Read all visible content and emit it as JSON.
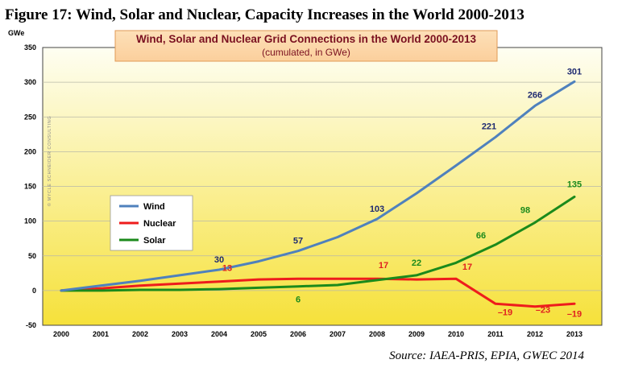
{
  "figure_heading": "Figure 17: Wind, Solar and Nuclear, Capacity Increases in the World 2000-2013",
  "source_note": "Source: IAEA-PRIS, EPIA, GWEC 2014",
  "colors": {
    "wind": "#4f81bd",
    "nuclear": "#ee1c1c",
    "solar": "#1b8a1b",
    "wind_label": "#1f2a70",
    "nuclear_label": "#e02020",
    "solar_label": "#1b8a1b",
    "title_box_fill": "#fbcf9c",
    "title_box_text": "#7a1020",
    "bg_top": "#fefef2",
    "bg_bottom": "#f6e13a"
  },
  "chart_data": {
    "type": "line",
    "title": "Wind, Solar and Nuclear Grid Connections in the World 2000-2013",
    "subtitle": "(cumulated, in GWe)",
    "ylabel": "GWe",
    "xlabel": "",
    "watermark": "© MYCLE SCHNEIDER CONSULTING",
    "ylim": [
      -50,
      350
    ],
    "yticks": [
      -50,
      0,
      50,
      100,
      150,
      200,
      250,
      300,
      350
    ],
    "categories": [
      "2000",
      "2001",
      "2002",
      "2003",
      "2004",
      "2005",
      "2006",
      "2007",
      "2008",
      "2009",
      "2010",
      "2011",
      "2012",
      "2013"
    ],
    "grid": true,
    "legend_position": "left",
    "series": [
      {
        "key": "wind",
        "name": "Wind",
        "values": [
          0,
          7,
          14,
          22,
          30,
          42,
          57,
          77,
          103,
          140,
          180,
          221,
          266,
          301
        ],
        "labels": [
          {
            "index": 4,
            "text": "30"
          },
          {
            "index": 6,
            "text": "57"
          },
          {
            "index": 8,
            "text": "103"
          },
          {
            "index": 11,
            "text": "221"
          },
          {
            "index": 12,
            "text": "266"
          },
          {
            "index": 13,
            "text": "301"
          }
        ]
      },
      {
        "key": "nuclear",
        "name": "Nuclear",
        "values": [
          0,
          3,
          7,
          10,
          13,
          16,
          17,
          17,
          17,
          16,
          17,
          -19,
          -23,
          -19
        ],
        "labels": [
          {
            "index": 4,
            "text": "13"
          },
          {
            "index": 8,
            "text": "17"
          },
          {
            "index": 10,
            "text": "17"
          },
          {
            "index": 11,
            "text": "–19"
          },
          {
            "index": 12,
            "text": "–23"
          },
          {
            "index": 13,
            "text": "–19"
          }
        ]
      },
      {
        "key": "solar",
        "name": "Solar",
        "values": [
          0,
          0,
          1,
          1,
          2,
          4,
          6,
          8,
          15,
          22,
          40,
          66,
          98,
          135
        ],
        "labels": [
          {
            "index": 6,
            "text": "6"
          },
          {
            "index": 9,
            "text": "22"
          },
          {
            "index": 11,
            "text": "66"
          },
          {
            "index": 12,
            "text": "98"
          },
          {
            "index": 13,
            "text": "135"
          }
        ]
      }
    ]
  }
}
